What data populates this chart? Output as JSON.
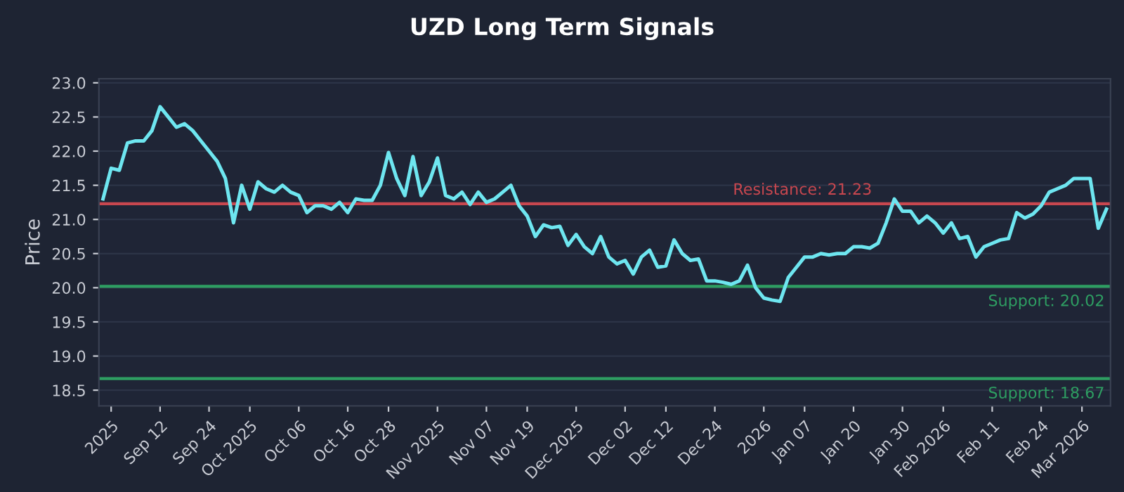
{
  "chart_data": {
    "type": "line",
    "title": "UZD Long Term Signals",
    "ylabel": "Price",
    "categories": [
      null,
      "2025",
      null,
      null,
      null,
      null,
      null,
      "Sep 12",
      null,
      null,
      null,
      null,
      null,
      "Sep 24",
      null,
      null,
      null,
      null,
      "Oct 2025",
      null,
      null,
      null,
      null,
      null,
      "Oct 06",
      null,
      null,
      null,
      null,
      null,
      "Oct 16",
      null,
      null,
      null,
      null,
      "Oct 28",
      null,
      null,
      null,
      null,
      null,
      "Nov 2025",
      null,
      null,
      null,
      null,
      null,
      "Nov 07",
      null,
      null,
      null,
      null,
      "Nov 19",
      null,
      null,
      null,
      null,
      null,
      "Dec 2025",
      null,
      null,
      null,
      null,
      null,
      "Dec 02",
      null,
      null,
      null,
      null,
      "Dec 12",
      null,
      null,
      null,
      null,
      null,
      "Dec 24",
      null,
      null,
      null,
      null,
      null,
      "2026",
      null,
      null,
      null,
      null,
      "Jan 07",
      null,
      null,
      null,
      null,
      null,
      "Jan 20",
      null,
      null,
      null,
      null,
      null,
      "Jan 30",
      null,
      null,
      null,
      null,
      "Feb 2026",
      null,
      null,
      null,
      null,
      null,
      "Feb 11",
      null,
      null,
      null,
      null,
      null,
      "Feb 24",
      null,
      null,
      null,
      null,
      "Mar 2026",
      null,
      null,
      null
    ],
    "series": [
      {
        "color": "#6ee6f0",
        "values": [
          21.3,
          21.75,
          21.72,
          22.12,
          22.15,
          22.15,
          22.3,
          22.65,
          22.5,
          22.35,
          22.4,
          22.3,
          22.15,
          22.0,
          21.85,
          21.6,
          20.95,
          21.5,
          21.15,
          21.55,
          21.45,
          21.4,
          21.5,
          21.4,
          21.35,
          21.1,
          21.2,
          21.2,
          21.15,
          21.25,
          21.1,
          21.3,
          21.28,
          21.28,
          21.5,
          21.98,
          21.6,
          21.35,
          21.92,
          21.35,
          21.55,
          21.9,
          21.35,
          21.3,
          21.4,
          21.22,
          21.4,
          21.25,
          21.3,
          21.4,
          21.5,
          21.2,
          21.05,
          20.75,
          20.92,
          20.88,
          20.9,
          20.62,
          20.78,
          20.6,
          20.5,
          20.75,
          20.45,
          20.35,
          20.4,
          20.2,
          20.45,
          20.55,
          20.3,
          20.32,
          20.7,
          20.5,
          20.4,
          20.42,
          20.1,
          20.1,
          20.08,
          20.05,
          20.1,
          20.33,
          20.0,
          19.85,
          19.82,
          19.8,
          20.15,
          20.3,
          20.45,
          20.45,
          20.5,
          20.48,
          20.5,
          20.5,
          20.6,
          20.6,
          20.58,
          20.65,
          20.95,
          21.3,
          21.12,
          21.12,
          20.95,
          21.05,
          20.95,
          20.8,
          20.95,
          20.72,
          20.75,
          20.45,
          20.6,
          20.65,
          20.7,
          20.72,
          21.1,
          21.02,
          21.08,
          21.2,
          21.4,
          21.45,
          21.5,
          21.6,
          21.6,
          21.6,
          20.87,
          21.15
        ]
      }
    ],
    "ylim": [
      18.27,
      23.06
    ],
    "yticks": [
      18.5,
      {
        "value": 19,
        "label": "19.0"
      },
      19.5,
      {
        "value": 20,
        "label": "20.0"
      },
      20.5,
      {
        "value": 21,
        "label": "21.0"
      },
      21.5,
      {
        "value": 22,
        "label": "22.0"
      },
      22.5,
      {
        "value": 23,
        "label": "23.0"
      }
    ],
    "ref_lines": [
      {
        "axis": "y",
        "value": 21.23,
        "label": "Resistance: 21.23",
        "color": "#c8474f"
      },
      {
        "axis": "y",
        "value": 20.02,
        "label": "Support: 20.02",
        "color": "#2e9e62"
      },
      {
        "axis": "y",
        "value": 18.67,
        "label": "Support: 18.67",
        "color": "#2e9e62"
      }
    ],
    "grid": "y",
    "legend": false,
    "marker": "none",
    "line_style": "solid"
  }
}
